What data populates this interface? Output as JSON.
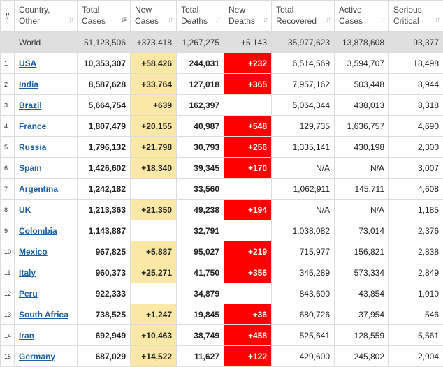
{
  "headers": [
    {
      "line1": "#",
      "line2": ""
    },
    {
      "line1": "Country,",
      "line2": "Other"
    },
    {
      "line1": "Total",
      "line2": "Cases"
    },
    {
      "line1": "New",
      "line2": "Cases"
    },
    {
      "line1": "Total",
      "line2": "Deaths"
    },
    {
      "line1": "New",
      "line2": "Deaths"
    },
    {
      "line1": "Total",
      "line2": "Recovered"
    },
    {
      "line1": "Active",
      "line2": "Cases"
    },
    {
      "line1": "Serious,",
      "line2": "Critical"
    }
  ],
  "colors": {
    "new_cases_bg": "#fbe8a6",
    "new_deaths_bg": "#ff0000",
    "world_row_bg": "#dfdfdf",
    "link": "#1a5ea8"
  },
  "rows": [
    {
      "idx": "",
      "country": "World",
      "total_cases": "51,123,506",
      "new_cases": "+373,418",
      "total_deaths": "1,267,275",
      "new_deaths": "+5,143",
      "total_recovered": "35,977,623",
      "active_cases": "13,878,608",
      "serious": "93,377"
    },
    {
      "idx": "1",
      "country": "USA",
      "total_cases": "10,353,307",
      "new_cases": "+58,426",
      "total_deaths": "244,031",
      "new_deaths": "+232",
      "total_recovered": "6,514,569",
      "active_cases": "3,594,707",
      "serious": "18,498"
    },
    {
      "idx": "2",
      "country": "India",
      "total_cases": "8,587,628",
      "new_cases": "+33,764",
      "total_deaths": "127,018",
      "new_deaths": "+365",
      "total_recovered": "7,957,162",
      "active_cases": "503,448",
      "serious": "8,944"
    },
    {
      "idx": "3",
      "country": "Brazil",
      "total_cases": "5,664,754",
      "new_cases": "+639",
      "total_deaths": "162,397",
      "new_deaths": "",
      "total_recovered": "5,064,344",
      "active_cases": "438,013",
      "serious": "8,318"
    },
    {
      "idx": "4",
      "country": "France",
      "total_cases": "1,807,479",
      "new_cases": "+20,155",
      "total_deaths": "40,987",
      "new_deaths": "+548",
      "total_recovered": "129,735",
      "active_cases": "1,636,757",
      "serious": "4,690"
    },
    {
      "idx": "5",
      "country": "Russia",
      "total_cases": "1,796,132",
      "new_cases": "+21,798",
      "total_deaths": "30,793",
      "new_deaths": "+256",
      "total_recovered": "1,335,141",
      "active_cases": "430,198",
      "serious": "2,300"
    },
    {
      "idx": "6",
      "country": "Spain",
      "total_cases": "1,426,602",
      "new_cases": "+18,340",
      "total_deaths": "39,345",
      "new_deaths": "+170",
      "total_recovered": "N/A",
      "active_cases": "N/A",
      "serious": "3,007"
    },
    {
      "idx": "7",
      "country": "Argentina",
      "total_cases": "1,242,182",
      "new_cases": "",
      "total_deaths": "33,560",
      "new_deaths": "",
      "total_recovered": "1,062,911",
      "active_cases": "145,711",
      "serious": "4,608"
    },
    {
      "idx": "8",
      "country": "UK",
      "total_cases": "1,213,363",
      "new_cases": "+21,350",
      "total_deaths": "49,238",
      "new_deaths": "+194",
      "total_recovered": "N/A",
      "active_cases": "N/A",
      "serious": "1,185"
    },
    {
      "idx": "9",
      "country": "Colombia",
      "total_cases": "1,143,887",
      "new_cases": "",
      "total_deaths": "32,791",
      "new_deaths": "",
      "total_recovered": "1,038,082",
      "active_cases": "73,014",
      "serious": "2,376"
    },
    {
      "idx": "10",
      "country": "Mexico",
      "total_cases": "967,825",
      "new_cases": "+5,887",
      "total_deaths": "95,027",
      "new_deaths": "+219",
      "total_recovered": "715,977",
      "active_cases": "156,821",
      "serious": "2,838"
    },
    {
      "idx": "11",
      "country": "Italy",
      "total_cases": "960,373",
      "new_cases": "+25,271",
      "total_deaths": "41,750",
      "new_deaths": "+356",
      "total_recovered": "345,289",
      "active_cases": "573,334",
      "serious": "2,849"
    },
    {
      "idx": "12",
      "country": "Peru",
      "total_cases": "922,333",
      "new_cases": "",
      "total_deaths": "34,879",
      "new_deaths": "",
      "total_recovered": "843,600",
      "active_cases": "43,854",
      "serious": "1,010"
    },
    {
      "idx": "13",
      "country": "South Africa",
      "total_cases": "738,525",
      "new_cases": "+1,247",
      "total_deaths": "19,845",
      "new_deaths": "+36",
      "total_recovered": "680,726",
      "active_cases": "37,954",
      "serious": "546"
    },
    {
      "idx": "14",
      "country": "Iran",
      "total_cases": "692,949",
      "new_cases": "+10,463",
      "total_deaths": "38,749",
      "new_deaths": "+458",
      "total_recovered": "525,641",
      "active_cases": "128,559",
      "serious": "5,561"
    },
    {
      "idx": "15",
      "country": "Germany",
      "total_cases": "687,029",
      "new_cases": "+14,522",
      "total_deaths": "11,627",
      "new_deaths": "+122",
      "total_recovered": "429,600",
      "active_cases": "245,802",
      "serious": "2,904"
    }
  ]
}
